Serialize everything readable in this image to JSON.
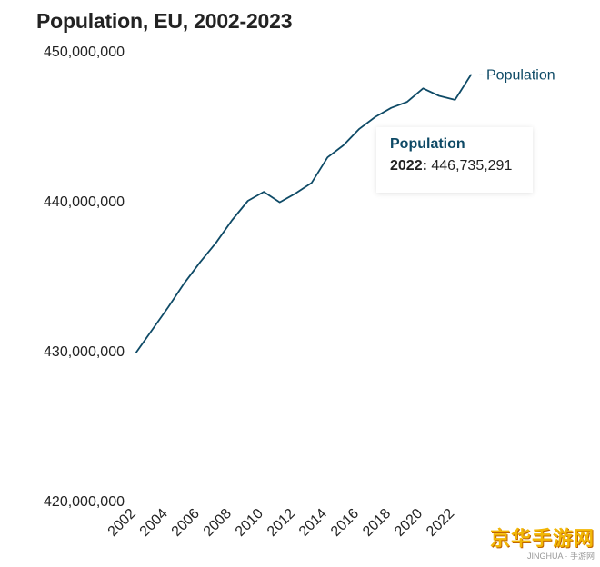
{
  "chart_data": {
    "type": "line",
    "title": "Population, EU, 2002-2023",
    "xlabel": "",
    "ylabel": "",
    "x": [
      2002,
      2003,
      2004,
      2005,
      2006,
      2007,
      2008,
      2009,
      2010,
      2011,
      2012,
      2013,
      2014,
      2015,
      2016,
      2017,
      2018,
      2019,
      2020,
      2021,
      2022,
      2023
    ],
    "series": [
      {
        "name": "Population",
        "values": [
          429900000,
          431400000,
          432900000,
          434500000,
          435900000,
          437200000,
          438700000,
          440000000,
          440600000,
          439900000,
          440500000,
          441200000,
          442900000,
          443700000,
          444800000,
          445600000,
          446200000,
          446600000,
          447500000,
          447000000,
          446735291,
          448400000
        ]
      }
    ],
    "xlim": [
      2002,
      2023
    ],
    "ylim": [
      420000000,
      450000000
    ],
    "y_ticks": [
      420000000,
      430000000,
      440000000,
      450000000
    ],
    "y_tick_labels": [
      "420,000,000",
      "430,000,000",
      "440,000,000",
      "450,000,000"
    ],
    "x_ticks": [
      2002,
      2004,
      2006,
      2008,
      2010,
      2012,
      2014,
      2016,
      2018,
      2020,
      2022
    ],
    "x_tick_labels": [
      "2002",
      "2004",
      "2006",
      "2008",
      "2010",
      "2012",
      "2014",
      "2016",
      "2018",
      "2020",
      "2022"
    ],
    "legend_position": "end-of-line",
    "grid": false,
    "line_color": "#0e4a66",
    "tooltip": {
      "series": "Population",
      "year": "2022",
      "value": "446,735,291"
    }
  },
  "watermark": {
    "logo_text": "京华手游网",
    "sub_text": "JINGHUA · 手游网"
  }
}
